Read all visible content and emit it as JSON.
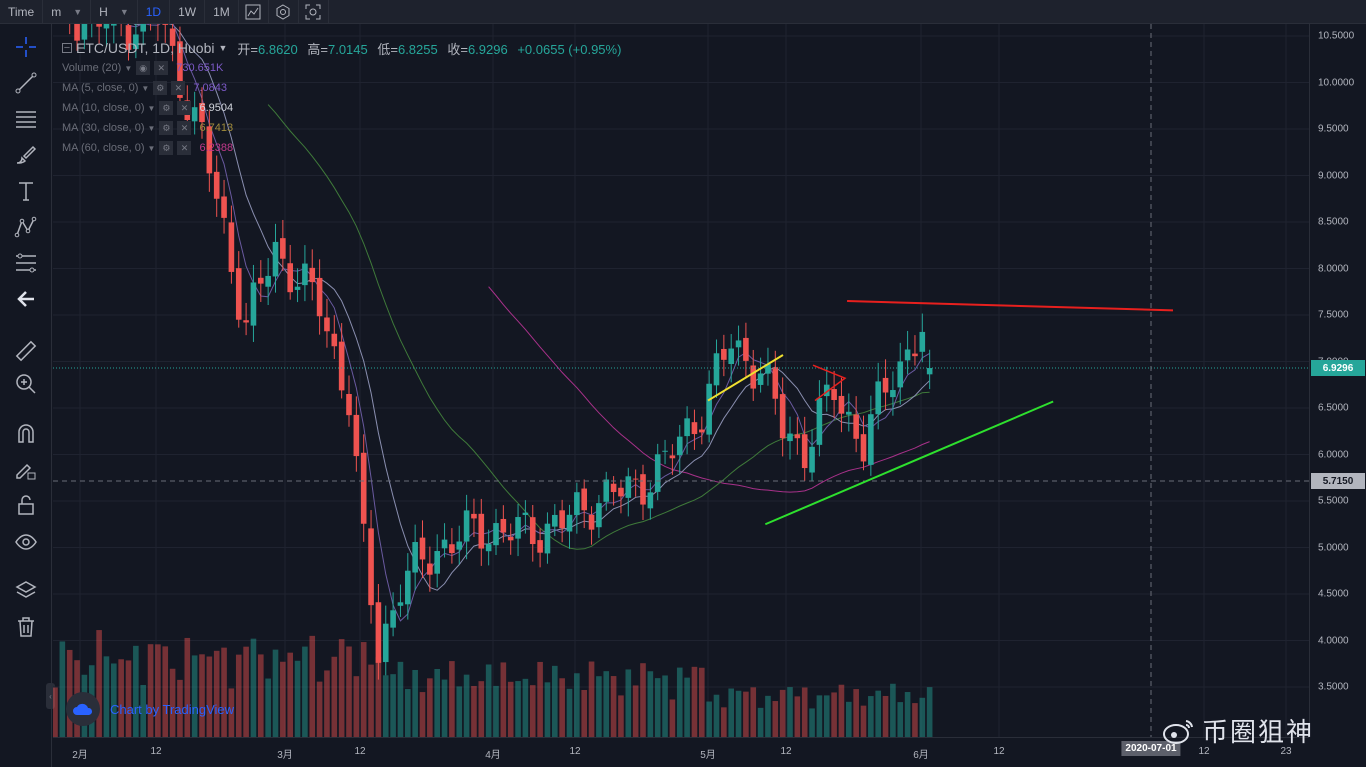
{
  "topbar": {
    "time_label": "Time",
    "items": [
      {
        "label": "m",
        "has_caret": true
      },
      {
        "label": "H",
        "has_caret": true
      },
      {
        "label": "1D",
        "active": true
      },
      {
        "label": "1W"
      },
      {
        "label": "1M"
      }
    ],
    "icons": [
      "chart-type-icon",
      "indicators-icon",
      "screenshot-icon"
    ]
  },
  "legend": {
    "symbol": "ETC/USDT, 1D, Huobi",
    "ohlc": [
      {
        "k": "开=",
        "v": "6.8620"
      },
      {
        "k": "高=",
        "v": "7.0145"
      },
      {
        "k": "低=",
        "v": "6.8255"
      },
      {
        "k": "收=",
        "v": "6.9296"
      },
      {
        "k": "",
        "v": "+0.0655 (+0.95%)"
      }
    ],
    "indicators": [
      {
        "name": "Volume (20)",
        "value": "730.651K",
        "color": "#7d5ac8"
      },
      {
        "name": "MA (5, close, 0)",
        "value": "7.0843",
        "color": "#7d5ac8"
      },
      {
        "name": "MA (10, close, 0)",
        "value": "6.9504",
        "color": "#b2b5be"
      },
      {
        "name": "MA (30, close, 0)",
        "value": "6.7413",
        "color": "#a08c3c"
      },
      {
        "name": "MA (60, close, 0)",
        "value": "6.2388",
        "color": "#c0398a"
      }
    ]
  },
  "price_axis": {
    "ticks": [
      "10.5000",
      "10.0000",
      "9.5000",
      "9.0000",
      "8.5000",
      "8.0000",
      "7.5000",
      "7.0000",
      "6.5000",
      "6.0000",
      "5.5000",
      "5.0000",
      "4.5000",
      "4.0000",
      "3.5000"
    ],
    "last_price": "6.9296",
    "crosshair_price": "5.7150"
  },
  "time_axis": {
    "ticks": [
      "2月",
      "12",
      "3月",
      "12",
      "4月",
      "12",
      "5月",
      "12",
      "6月",
      "12",
      "12",
      "23"
    ],
    "crosshair_date": "2020-07-01"
  },
  "branding": {
    "tv_text": "Chart by TradingView",
    "watermark": "币圈狙神"
  },
  "colors": {
    "up": "#26a69a",
    "down": "#ef5350",
    "resistance": "#e8201e",
    "support": "#2ee02e",
    "flag": "#f0e030"
  },
  "chart_data": {
    "type": "candlestick",
    "symbol": "ETC/USDT",
    "interval": "1D",
    "exchange": "Huobi",
    "ylim": [
      3.2,
      10.6
    ],
    "last_close": 6.9296,
    "trendlines": [
      {
        "name": "resistance",
        "from": [
          0.709,
          7.65
        ],
        "to": [
          1.0,
          7.55
        ]
      },
      {
        "name": "support",
        "from": [
          0.636,
          5.25
        ],
        "to": [
          0.893,
          6.57
        ]
      }
    ]
  }
}
